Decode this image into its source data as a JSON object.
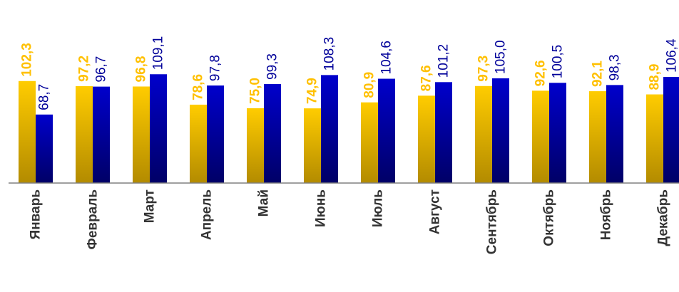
{
  "colors": {
    "series_a_top": "#ffcc00",
    "series_a_bottom": "#b38b00",
    "series_a_label": "#ffc000",
    "series_b_top": "#0000cc",
    "series_b_bottom": "#000066",
    "series_b_label": "#000099",
    "axis": "#808080",
    "category_label": "#333333"
  },
  "chart_data": {
    "type": "bar",
    "title": "",
    "xlabel": "",
    "ylabel": "",
    "grid": false,
    "legend": "none",
    "ylim": [
      0,
      180
    ],
    "categories": [
      "Январь",
      "Февраль",
      "Март",
      "Апрель",
      "Май",
      "Июнь",
      "Июль",
      "Август",
      "Сентябрь",
      "Октябрь",
      "Ноябрь",
      "Декабрь"
    ],
    "series": [
      {
        "values": [
          102.3,
          97.2,
          96.8,
          78.6,
          75.0,
          74.9,
          80.9,
          87.6,
          97.3,
          92.6,
          92.1,
          88.9
        ],
        "labels": [
          "102,3",
          "97,2",
          "96,8",
          "78,6",
          "75,0",
          "74,9",
          "80,9",
          "87,6",
          "97,3",
          "92,6",
          "92,1",
          "88,9"
        ]
      },
      {
        "values": [
          68.7,
          96.7,
          109.1,
          97.8,
          99.3,
          108.3,
          104.6,
          101.2,
          105.0,
          100.5,
          98.3,
          106.4
        ],
        "labels": [
          "68,7",
          "96,7",
          "109,1",
          "97,8",
          "99,3",
          "108,3",
          "104,6",
          "101,2",
          "105,0",
          "100,5",
          "98,3",
          "106,4"
        ]
      }
    ]
  }
}
